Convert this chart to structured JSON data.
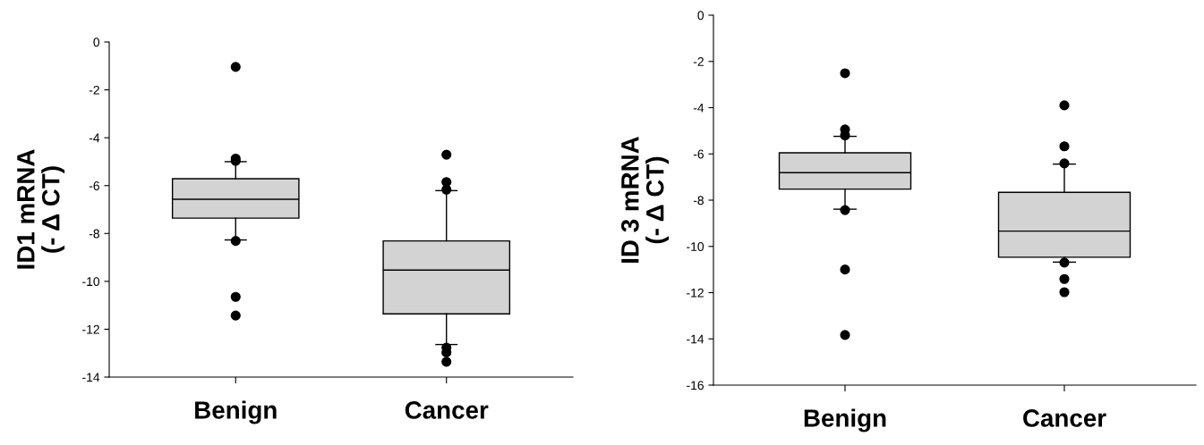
{
  "chart_data": [
    {
      "type": "box",
      "ylabel": "ID1 mRNA\n(- Δ CT)",
      "categories": [
        "Benign",
        "Cancer"
      ],
      "ylim": [
        -14,
        0
      ],
      "yticks": [
        -14,
        -12,
        -10,
        -8,
        -6,
        -4,
        -2,
        0
      ],
      "grid": false,
      "series": [
        {
          "color": "#d3d3d3",
          "boxes": [
            {
              "low": -8.27,
              "q1": -7.36,
              "median": -6.57,
              "q3": -5.71,
              "high": -5.0,
              "outliers": [
                -1.04,
                -4.87,
                -4.97,
                -8.31,
                -10.65,
                -11.43
              ]
            },
            {
              "low": -12.64,
              "q1": -11.36,
              "median": -9.53,
              "q3": -8.31,
              "high": -6.21,
              "outliers": [
                -4.71,
                -5.85,
                -6.17,
                -12.77,
                -12.97,
                -13.36
              ]
            }
          ]
        }
      ]
    },
    {
      "type": "box",
      "ylabel": "ID 3 mRNA\n(- Δ CT)",
      "categories": [
        "Benign",
        "Cancer"
      ],
      "ylim": [
        -16,
        0
      ],
      "yticks": [
        -16,
        -14,
        -12,
        -10,
        -8,
        -6,
        -4,
        -2,
        0
      ],
      "grid": false,
      "series": [
        {
          "color": "#d3d3d3",
          "boxes": [
            {
              "low": -8.39,
              "q1": -7.52,
              "median": -6.81,
              "q3": -5.95,
              "high": -5.24,
              "outliers": [
                -2.51,
                -4.94,
                -5.2,
                -8.43,
                -11.0,
                -13.83
              ]
            },
            {
              "low": -10.68,
              "q1": -10.47,
              "median": -9.34,
              "q3": -7.66,
              "high": -6.44,
              "outliers": [
                -3.9,
                -5.67,
                -6.41,
                -10.7,
                -11.41,
                -11.98
              ]
            }
          ]
        }
      ]
    }
  ]
}
